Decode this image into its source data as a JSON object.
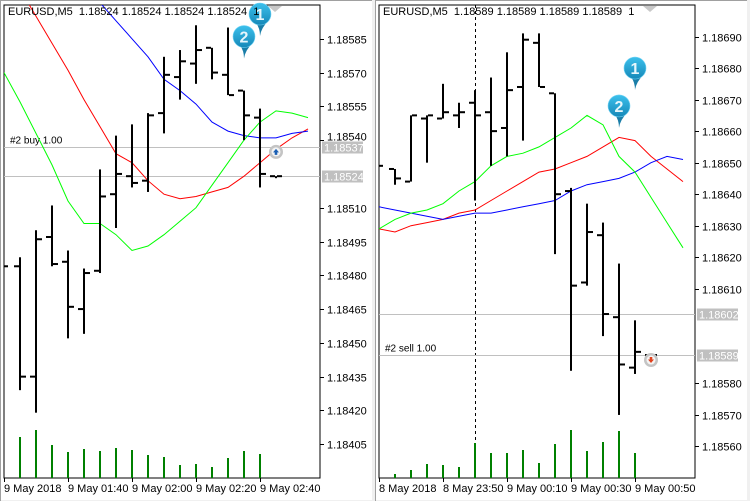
{
  "colors": {
    "bars": "#000000",
    "volume": "#008000",
    "ma_red": "#ff0000",
    "ma_blue": "#0000ff",
    "ma_green": "#00ff00",
    "level_line": "#c0c0c0",
    "price_label_bg": "#c0c0c0",
    "balloon": "#1fa3d6"
  },
  "chart_data": [
    {
      "type": "ohlc",
      "header": "EURUSD,M5  1.18524 1.18524 1.18524 1.18524  1",
      "ylim": [
        1.1839,
        1.186
      ],
      "yticks": [
        "1.18585",
        "1.18570",
        "1.18555",
        "1.18540",
        "1.18510",
        "1.18495",
        "1.18480",
        "1.18465",
        "1.18450",
        "1.18435",
        "1.18420",
        "1.18405"
      ],
      "bars": [
        {
          "t": "01:20",
          "c": 1.18484
        },
        {
          "t": "01:25",
          "o": 1.18484,
          "h": 1.18488,
          "l": 1.18429,
          "c": 1.18435,
          "v": 41
        },
        {
          "t": "01:30",
          "o": 1.18435,
          "h": 1.185,
          "l": 1.18419,
          "c": 1.18496,
          "v": 48
        },
        {
          "t": "01:35",
          "o": 1.18497,
          "h": 1.18511,
          "l": 1.18484,
          "c": 1.18485,
          "v": 33
        },
        {
          "t": "01:40",
          "o": 1.18486,
          "h": 1.18491,
          "l": 1.18452,
          "c": 1.18466,
          "v": 26
        },
        {
          "t": "01:45",
          "o": 1.18465,
          "h": 1.18483,
          "l": 1.18454,
          "c": 1.18481,
          "v": 29
        },
        {
          "t": "01:50",
          "o": 1.18482,
          "h": 1.18527,
          "l": 1.18481,
          "c": 1.18515,
          "v": 27
        },
        {
          "t": "01:55",
          "o": 1.18516,
          "h": 1.18542,
          "l": 1.18501,
          "c": 1.18525,
          "v": 30
        },
        {
          "t": "02:00",
          "o": 1.18524,
          "h": 1.18547,
          "l": 1.18519,
          "c": 1.18521,
          "v": 28
        },
        {
          "t": "02:05",
          "o": 1.18522,
          "h": 1.18552,
          "l": 1.18517,
          "c": 1.18551,
          "v": 23
        },
        {
          "t": "02:10",
          "o": 1.18552,
          "h": 1.18577,
          "l": 1.18543,
          "c": 1.18569,
          "v": 21
        },
        {
          "t": "02:15",
          "o": 1.18568,
          "h": 1.1858,
          "l": 1.18558,
          "c": 1.18575,
          "v": 13
        },
        {
          "t": "02:20",
          "o": 1.18574,
          "h": 1.18591,
          "l": 1.18565,
          "c": 1.1858,
          "v": 14
        },
        {
          "t": "02:25",
          "o": 1.18581,
          "h": 1.18581,
          "l": 1.18567,
          "c": 1.1857,
          "v": 11
        },
        {
          "t": "02:30",
          "o": 1.18569,
          "h": 1.1859,
          "l": 1.1856,
          "c": 1.1856,
          "v": 20
        },
        {
          "t": "02:35",
          "o": 1.18562,
          "h": 1.18562,
          "l": 1.1854,
          "c": 1.18551,
          "v": 27
        },
        {
          "t": "02:40",
          "o": 1.1855,
          "h": 1.18554,
          "l": 1.18519,
          "c": 1.18525,
          "v": 24
        },
        {
          "t": "02:45",
          "o": 1.18524,
          "h": 1.18524,
          "l": 1.18524,
          "c": 1.18524
        }
      ],
      "ma_lines": [
        {
          "color": "ma_red",
          "values": [
            1.1862,
            1.18607,
            1.18595,
            1.18583,
            1.18571,
            1.18558,
            1.18546,
            1.18534,
            1.1853,
            1.18522,
            1.18516,
            1.18514,
            1.18515,
            1.18517,
            1.18519,
            1.18524,
            1.1853,
            1.18536,
            1.18541,
            1.18545
          ]
        },
        {
          "color": "ma_blue",
          "values": [
            1.18652,
            1.18644,
            1.18636,
            1.18627,
            1.18619,
            1.1861,
            1.18601,
            1.18593,
            1.18585,
            1.18577,
            1.18567,
            1.18562,
            1.18556,
            1.18548,
            1.18544,
            1.18542,
            1.18541,
            1.18541,
            1.18543,
            1.18544
          ]
        },
        {
          "color": "ma_green",
          "values": [
            1.1857,
            1.18557,
            1.18543,
            1.18529,
            1.18513,
            1.18503,
            1.18503,
            1.18498,
            1.18491,
            1.18493,
            1.18498,
            1.18504,
            1.1851,
            1.1852,
            1.1853,
            1.1854,
            1.18548,
            1.18553,
            1.18552,
            1.1855
          ]
        }
      ],
      "xlabels": [
        {
          "bar": 0,
          "text": "9 May 2018"
        },
        {
          "bar": 4,
          "text": "9 May 01:40"
        },
        {
          "bar": 8,
          "text": "9 May 02:00"
        },
        {
          "bar": 12,
          "text": "9 May 02:20"
        },
        {
          "bar": 16,
          "text": "9 May 02:40"
        }
      ],
      "levels": [
        {
          "price": 1.18537,
          "label": "1.18537",
          "text": "#2 buy 1.00"
        },
        {
          "price": 1.18524,
          "label": "1.18524",
          "text": ""
        }
      ],
      "order_marker": {
        "type": "buy",
        "bar": 17,
        "price": 1.18537
      },
      "balloons": [
        {
          "text": "1",
          "bar": 16,
          "price": 1.18596
        },
        {
          "text": "2",
          "bar": 15,
          "price": 1.18586
        }
      ],
      "separator_bar": null
    },
    {
      "type": "ohlc",
      "header": "EURUSD,M5  1.18589 1.18589 1.18589 1.18589  1",
      "ylim": [
        1.1855,
        1.187
      ],
      "yticks": [
        "1.18690",
        "1.18680",
        "1.18670",
        "1.18660",
        "1.18650",
        "1.18640",
        "1.18630",
        "1.18620",
        "1.18610",
        "1.18580",
        "1.18570",
        "1.18560"
      ],
      "bars": [
        {
          "t": "23:30",
          "c": 1.18649
        },
        {
          "t": "23:35",
          "o": 1.18648,
          "h": 1.18648,
          "l": 1.18643,
          "c": 1.18645,
          "v": 4
        },
        {
          "t": "23:40",
          "o": 1.18644,
          "h": 1.18665,
          "l": 1.18644,
          "c": 1.18665,
          "v": 8
        },
        {
          "t": "23:45",
          "o": 1.18664,
          "h": 1.18665,
          "l": 1.1865,
          "c": 1.18665,
          "v": 14
        },
        {
          "t": "23:50",
          "o": 1.18664,
          "h": 1.18675,
          "l": 1.18664,
          "c": 1.18666,
          "v": 13
        },
        {
          "t": "23:55",
          "o": 1.18665,
          "h": 1.18669,
          "l": 1.18661,
          "c": 1.18666,
          "v": 11
        },
        {
          "t": "00:00",
          "o": 1.18669,
          "h": 1.18673,
          "l": 1.18638,
          "c": 1.18665,
          "v": 35
        },
        {
          "t": "00:05",
          "o": 1.18666,
          "h": 1.18677,
          "l": 1.18649,
          "c": 1.1866,
          "v": 25
        },
        {
          "t": "00:10",
          "o": 1.18661,
          "h": 1.18685,
          "l": 1.18652,
          "c": 1.18673,
          "v": 25
        },
        {
          "t": "00:15",
          "o": 1.18674,
          "h": 1.18691,
          "l": 1.18657,
          "c": 1.18689,
          "v": 28
        },
        {
          "t": "00:20",
          "o": 1.18688,
          "h": 1.18691,
          "l": 1.18674,
          "c": 1.18674,
          "v": 15
        },
        {
          "t": "00:25",
          "o": 1.18672,
          "h": 1.18672,
          "l": 1.18621,
          "c": 1.1864,
          "v": 34
        },
        {
          "t": "00:30",
          "o": 1.18641,
          "h": 1.18642,
          "l": 1.18584,
          "c": 1.18611,
          "v": 48
        },
        {
          "t": "00:35",
          "o": 1.18612,
          "h": 1.18637,
          "l": 1.18611,
          "c": 1.18628,
          "v": 27
        },
        {
          "t": "00:40",
          "o": 1.18627,
          "h": 1.18631,
          "l": 1.18595,
          "c": 1.18602,
          "v": 36
        },
        {
          "t": "00:45",
          "o": 1.18601,
          "h": 1.18618,
          "l": 1.1857,
          "c": 1.18586,
          "v": 47
        },
        {
          "t": "00:50",
          "o": 1.18585,
          "h": 1.186,
          "l": 1.18583,
          "c": 1.1859,
          "v": 25
        },
        {
          "t": "00:55",
          "o": 1.18589,
          "h": 1.18589,
          "l": 1.18589,
          "c": 1.18589
        }
      ],
      "ma_lines": [
        {
          "color": "ma_red",
          "values": [
            1.18629,
            1.18628,
            1.1863,
            1.18631,
            1.18632,
            1.18634,
            1.18635,
            1.18638,
            1.18641,
            1.18644,
            1.18647,
            1.18648,
            1.1865,
            1.18652,
            1.18655,
            1.18658,
            1.18657,
            1.18652,
            1.18648,
            1.18644
          ]
        },
        {
          "color": "ma_blue",
          "values": [
            1.18636,
            1.18635,
            1.18634,
            1.18633,
            1.18632,
            1.18633,
            1.18634,
            1.18634,
            1.18635,
            1.18636,
            1.18637,
            1.18638,
            1.18641,
            1.18643,
            1.18644,
            1.18645,
            1.18647,
            1.1865,
            1.18652,
            1.18651
          ]
        },
        {
          "color": "ma_green",
          "values": [
            1.18629,
            1.18632,
            1.18634,
            1.18635,
            1.18637,
            1.18641,
            1.18644,
            1.18649,
            1.18652,
            1.18653,
            1.18655,
            1.18658,
            1.18661,
            1.18665,
            1.18662,
            1.18652,
            1.18647,
            1.18639,
            1.18631,
            1.18623
          ]
        }
      ],
      "xlabels": [
        {
          "bar": 0,
          "text": "8 May 2018"
        },
        {
          "bar": 4,
          "text": "8 May 23:50"
        },
        {
          "bar": 8,
          "text": "9 May 00:10"
        },
        {
          "bar": 12,
          "text": "9 May 00:30"
        },
        {
          "bar": 16,
          "text": "9 May 00:50"
        }
      ],
      "levels": [
        {
          "price": 1.18602,
          "label": "1.18602",
          "text": ""
        },
        {
          "price": 1.18589,
          "label": "1.18589",
          "text": "#2 sell 1.00"
        }
      ],
      "order_marker": {
        "type": "sell",
        "bar": 17,
        "price": 1.18589
      },
      "balloons": [
        {
          "text": "1",
          "bar": 16,
          "price": 1.1868
        },
        {
          "text": "2",
          "bar": 15,
          "price": 1.18668
        }
      ],
      "separator_bar": 6
    }
  ]
}
